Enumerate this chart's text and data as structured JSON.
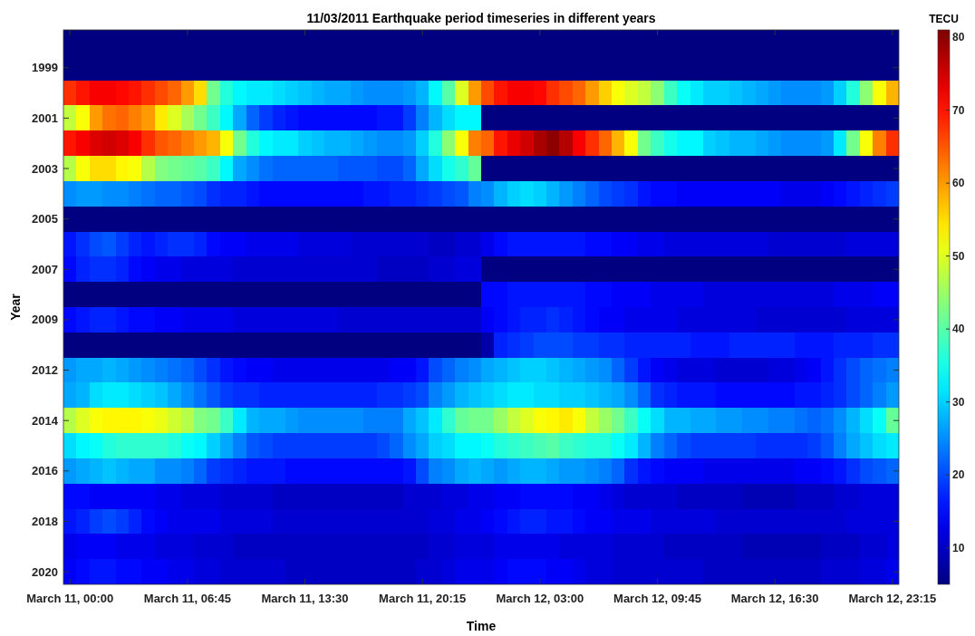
{
  "chart_data": {
    "type": "heatmap",
    "title": "11/03/2011 Earthquake period timeseries in different years",
    "xlabel": "Time",
    "ylabel": "Year",
    "clabel": "TECU",
    "categories": [
      "March 11, 00:00",
      null,
      null,
      null,
      null,
      null,
      null,
      null,
      null,
      "March 11, 06:45",
      null,
      null,
      null,
      null,
      null,
      null,
      null,
      null,
      "March 11, 13:30",
      null,
      null,
      null,
      null,
      null,
      null,
      null,
      null,
      "March 11, 20:15",
      null,
      null,
      null,
      null,
      null,
      null,
      null,
      null,
      "March 12, 03:00",
      null,
      null,
      null,
      null,
      null,
      null,
      null,
      null,
      "March 12, 09:45",
      null,
      null,
      null,
      null,
      null,
      null,
      null,
      null,
      "March 12, 16:30",
      null,
      null,
      null,
      null,
      null,
      null,
      null,
      null,
      "March 12, 23:15"
    ],
    "y_categories": [
      null,
      "1999",
      null,
      "2001",
      null,
      "2003",
      null,
      "2005",
      null,
      "2007",
      null,
      "2009",
      null,
      "2012",
      null,
      "2014",
      null,
      "2016",
      null,
      "2018",
      null,
      "2020"
    ],
    "clim": [
      5,
      81
    ],
    "cticks": [
      10,
      20,
      30,
      40,
      50,
      60,
      70,
      80
    ],
    "cells": [
      [
        5,
        5,
        5,
        5,
        5,
        5,
        5,
        5,
        5,
        5,
        5,
        5,
        5,
        5,
        5,
        5,
        5,
        5,
        5,
        5,
        5,
        5,
        5,
        5,
        5,
        5,
        5,
        5,
        5,
        5,
        5,
        5,
        5,
        5,
        5,
        5,
        5,
        5,
        5,
        5,
        5,
        5,
        5,
        5,
        5,
        5,
        5,
        5,
        5,
        5,
        5,
        5,
        5,
        5,
        5,
        5,
        5,
        5,
        5,
        5,
        5,
        5,
        5,
        5
      ],
      [
        5,
        5,
        5,
        5,
        5,
        5,
        5,
        5,
        5,
        5,
        5,
        5,
        5,
        5,
        5,
        5,
        5,
        5,
        5,
        5,
        5,
        5,
        5,
        5,
        5,
        5,
        5,
        5,
        5,
        5,
        5,
        5,
        5,
        5,
        5,
        5,
        5,
        5,
        5,
        5,
        5,
        5,
        5,
        5,
        5,
        5,
        5,
        5,
        5,
        5,
        5,
        5,
        5,
        5,
        5,
        5,
        5,
        5,
        5,
        5,
        5,
        5,
        5,
        5
      ],
      [
        68,
        70,
        72,
        72,
        71,
        70,
        68,
        66,
        64,
        60,
        55,
        42,
        36,
        33,
        32,
        32,
        31,
        30,
        29,
        28,
        27,
        27,
        26,
        25,
        25,
        25,
        26,
        28,
        33,
        40,
        50,
        60,
        66,
        70,
        72,
        72,
        71,
        68,
        66,
        64,
        60,
        56,
        52,
        50,
        48,
        44,
        38,
        34,
        32,
        30,
        30,
        29,
        28,
        27,
        26,
        25,
        25,
        25,
        26,
        30,
        36,
        44,
        52,
        58
      ],
      [
        48,
        52,
        60,
        63,
        64,
        62,
        60,
        54,
        50,
        46,
        42,
        38,
        33,
        27,
        22,
        19,
        17,
        16,
        15,
        15,
        15,
        15,
        15,
        15,
        16,
        16,
        19,
        24,
        28,
        31,
        33,
        33,
        5,
        5,
        5,
        5,
        5,
        5,
        5,
        5,
        5,
        5,
        5,
        5,
        5,
        5,
        5,
        5,
        5,
        5,
        5,
        5,
        5,
        5,
        5,
        5,
        5,
        5,
        5,
        5,
        5,
        5,
        5,
        5
      ],
      [
        70,
        72,
        74,
        75,
        74,
        72,
        68,
        65,
        64,
        62,
        60,
        58,
        52,
        42,
        36,
        33,
        32,
        32,
        30,
        29,
        28,
        28,
        27,
        26,
        25,
        25,
        26,
        30,
        36,
        44,
        52,
        62,
        64,
        70,
        73,
        75,
        78,
        80,
        77,
        72,
        68,
        64,
        58,
        52,
        42,
        38,
        35,
        33,
        33,
        30,
        29,
        28,
        28,
        27,
        26,
        25,
        25,
        25,
        26,
        32,
        42,
        52,
        62,
        68
      ],
      [
        47,
        52,
        55,
        55,
        53,
        52,
        47,
        43,
        42,
        41,
        40,
        38,
        33,
        27,
        25,
        23,
        22,
        22,
        22,
        22,
        22,
        21,
        21,
        21,
        20,
        20,
        22,
        27,
        31,
        35,
        37,
        41,
        5,
        5,
        5,
        5,
        5,
        5,
        5,
        5,
        5,
        5,
        5,
        5,
        5,
        5,
        5,
        5,
        5,
        5,
        5,
        5,
        5,
        5,
        5,
        5,
        5,
        5,
        5,
        5,
        5,
        5,
        5,
        5
      ],
      [
        25,
        26,
        26,
        25,
        25,
        24,
        23,
        22,
        22,
        21,
        20,
        18,
        17,
        17,
        16,
        15,
        15,
        15,
        15,
        15,
        15,
        15,
        15,
        16,
        16,
        17,
        17,
        18,
        19,
        20,
        21,
        24,
        25,
        28,
        30,
        31,
        30,
        28,
        26,
        24,
        22,
        20,
        19,
        18,
        16,
        15,
        15,
        14,
        14,
        14,
        14,
        14,
        14,
        14,
        14,
        13,
        13,
        13,
        14,
        15,
        16,
        17,
        18,
        19
      ],
      [
        5,
        5,
        5,
        5,
        5,
        5,
        5,
        5,
        5,
        5,
        5,
        5,
        5,
        5,
        5,
        5,
        5,
        5,
        5,
        5,
        5,
        5,
        5,
        5,
        5,
        5,
        5,
        5,
        5,
        5,
        5,
        5,
        5,
        5,
        5,
        5,
        5,
        5,
        5,
        5,
        5,
        5,
        5,
        5,
        5,
        5,
        5,
        5,
        5,
        5,
        5,
        5,
        5,
        5,
        5,
        5,
        5,
        5,
        5,
        5,
        5,
        5,
        5,
        5
      ],
      [
        16,
        18,
        20,
        21,
        19,
        17,
        16,
        17,
        18,
        18,
        17,
        15,
        14,
        14,
        13,
        13,
        13,
        13,
        12,
        12,
        12,
        12,
        11,
        11,
        11,
        11,
        11,
        11,
        10,
        10,
        11,
        11,
        13,
        15,
        16,
        16,
        16,
        16,
        16,
        16,
        15,
        15,
        14,
        14,
        13,
        13,
        12,
        12,
        12,
        12,
        12,
        12,
        12,
        12,
        11,
        11,
        11,
        11,
        11,
        11,
        12,
        12,
        12,
        12
      ],
      [
        15,
        17,
        18,
        18,
        17,
        15,
        14,
        13,
        13,
        12,
        12,
        12,
        12,
        11,
        11,
        11,
        11,
        11,
        11,
        11,
        11,
        11,
        11,
        11,
        10,
        10,
        10,
        10,
        11,
        11,
        12,
        12,
        5,
        5,
        5,
        5,
        5,
        5,
        5,
        5,
        5,
        5,
        5,
        5,
        5,
        5,
        5,
        5,
        5,
        5,
        5,
        5,
        5,
        5,
        5,
        5,
        5,
        5,
        5,
        5,
        5,
        5,
        5,
        5
      ],
      [
        5,
        5,
        5,
        5,
        5,
        5,
        5,
        5,
        5,
        5,
        5,
        5,
        5,
        5,
        5,
        5,
        5,
        5,
        5,
        5,
        5,
        5,
        5,
        5,
        5,
        5,
        5,
        5,
        5,
        5,
        5,
        5,
        15,
        15,
        16,
        16,
        16,
        16,
        16,
        16,
        15,
        15,
        14,
        14,
        14,
        13,
        13,
        13,
        13,
        12,
        12,
        12,
        12,
        12,
        12,
        12,
        12,
        12,
        12,
        13,
        13,
        13,
        14,
        14
      ],
      [
        15,
        16,
        17,
        17,
        16,
        15,
        15,
        14,
        14,
        13,
        13,
        13,
        13,
        12,
        12,
        12,
        12,
        12,
        12,
        12,
        12,
        11,
        11,
        11,
        11,
        11,
        11,
        11,
        11,
        11,
        11,
        11,
        14,
        15,
        16,
        17,
        17,
        18,
        17,
        16,
        15,
        14,
        14,
        13,
        13,
        13,
        13,
        12,
        12,
        12,
        12,
        12,
        12,
        11,
        11,
        11,
        11,
        11,
        11,
        11,
        12,
        12,
        12,
        12
      ],
      [
        5,
        5,
        5,
        5,
        5,
        5,
        5,
        5,
        5,
        5,
        5,
        5,
        5,
        5,
        5,
        5,
        5,
        5,
        5,
        5,
        5,
        5,
        5,
        5,
        5,
        5,
        5,
        5,
        5,
        5,
        5,
        5,
        8,
        17,
        18,
        19,
        20,
        20,
        20,
        19,
        19,
        18,
        18,
        17,
        17,
        17,
        17,
        17,
        16,
        16,
        16,
        17,
        17,
        17,
        17,
        17,
        16,
        16,
        16,
        17,
        17,
        17,
        18,
        18
      ],
      [
        26,
        27,
        27,
        28,
        27,
        26,
        25,
        24,
        23,
        22,
        20,
        18,
        16,
        15,
        14,
        14,
        13,
        13,
        13,
        13,
        13,
        13,
        13,
        13,
        13,
        14,
        14,
        16,
        20,
        22,
        24,
        25,
        27,
        28,
        29,
        30,
        30,
        29,
        28,
        27,
        26,
        25,
        22,
        19,
        16,
        14,
        13,
        12,
        12,
        12,
        11,
        11,
        11,
        11,
        12,
        12,
        13,
        14,
        16,
        18,
        20,
        22,
        23,
        24
      ],
      [
        27,
        28,
        31,
        32,
        32,
        31,
        30,
        29,
        27,
        25,
        23,
        21,
        19,
        18,
        18,
        17,
        17,
        17,
        17,
        17,
        17,
        17,
        17,
        17,
        18,
        18,
        19,
        20,
        24,
        26,
        28,
        29,
        30,
        31,
        32,
        32,
        31,
        31,
        30,
        30,
        29,
        28,
        27,
        25,
        22,
        18,
        17,
        16,
        16,
        16,
        15,
        15,
        15,
        15,
        15,
        15,
        16,
        16,
        17,
        18,
        20,
        22,
        24,
        26
      ],
      [
        47,
        50,
        52,
        53,
        53,
        53,
        52,
        51,
        49,
        47,
        43,
        42,
        38,
        32,
        28,
        27,
        27,
        26,
        25,
        25,
        25,
        25,
        25,
        24,
        24,
        24,
        27,
        29,
        32,
        37,
        41,
        42,
        42,
        45,
        48,
        50,
        52,
        53,
        54,
        52,
        48,
        45,
        42,
        38,
        34,
        31,
        28,
        28,
        27,
        27,
        26,
        26,
        25,
        25,
        24,
        24,
        23,
        22,
        23,
        25,
        28,
        31,
        34,
        41
      ],
      [
        31,
        33,
        34,
        36,
        37,
        37,
        37,
        37,
        36,
        34,
        33,
        30,
        27,
        24,
        21,
        20,
        19,
        19,
        19,
        19,
        19,
        19,
        19,
        19,
        20,
        22,
        25,
        27,
        30,
        31,
        33,
        33,
        34,
        36,
        37,
        38,
        39,
        40,
        38,
        37,
        36,
        36,
        34,
        32,
        28,
        24,
        22,
        20,
        19,
        19,
        19,
        19,
        19,
        18,
        18,
        18,
        18,
        19,
        21,
        24,
        27,
        29,
        31,
        32
      ],
      [
        26,
        27,
        28,
        29,
        28,
        27,
        27,
        25,
        25,
        24,
        22,
        19,
        18,
        17,
        16,
        16,
        16,
        15,
        15,
        15,
        15,
        15,
        15,
        15,
        15,
        15,
        16,
        20,
        24,
        25,
        27,
        28,
        27,
        26,
        27,
        28,
        28,
        27,
        26,
        26,
        25,
        24,
        22,
        18,
        16,
        15,
        14,
        14,
        14,
        13,
        13,
        13,
        13,
        13,
        13,
        13,
        14,
        14,
        15,
        16,
        18,
        20,
        21,
        22
      ],
      [
        15,
        15,
        14,
        14,
        14,
        14,
        14,
        13,
        13,
        12,
        12,
        12,
        11,
        11,
        11,
        11,
        10,
        10,
        10,
        10,
        10,
        10,
        10,
        10,
        10,
        10,
        11,
        11,
        11,
        12,
        12,
        13,
        13,
        14,
        14,
        15,
        15,
        15,
        15,
        14,
        14,
        13,
        12,
        11,
        11,
        11,
        11,
        10,
        10,
        10,
        10,
        10,
        9,
        9,
        9,
        9,
        10,
        10,
        10,
        11,
        11,
        12,
        12,
        12
      ],
      [
        16,
        17,
        19,
        20,
        19,
        17,
        15,
        14,
        13,
        13,
        13,
        13,
        12,
        12,
        12,
        12,
        11,
        11,
        11,
        11,
        11,
        11,
        11,
        11,
        11,
        11,
        11,
        11,
        12,
        12,
        13,
        13,
        14,
        15,
        16,
        17,
        17,
        16,
        16,
        15,
        14,
        14,
        13,
        13,
        13,
        12,
        12,
        12,
        12,
        12,
        11,
        11,
        11,
        11,
        11,
        11,
        11,
        11,
        11,
        11,
        12,
        12,
        12,
        12
      ],
      [
        13,
        14,
        14,
        14,
        13,
        13,
        13,
        12,
        12,
        12,
        11,
        11,
        11,
        10,
        10,
        10,
        10,
        10,
        10,
        10,
        10,
        10,
        10,
        10,
        10,
        10,
        10,
        10,
        11,
        11,
        12,
        12,
        12,
        13,
        13,
        13,
        13,
        13,
        12,
        12,
        12,
        12,
        11,
        11,
        11,
        11,
        10,
        10,
        10,
        10,
        10,
        10,
        9,
        9,
        9,
        9,
        9,
        9,
        10,
        10,
        10,
        11,
        11,
        12
      ],
      [
        14,
        15,
        16,
        16,
        15,
        15,
        14,
        14,
        13,
        13,
        12,
        12,
        11,
        11,
        11,
        11,
        11,
        10,
        10,
        10,
        10,
        10,
        10,
        10,
        10,
        10,
        10,
        11,
        11,
        12,
        13,
        13,
        13,
        14,
        15,
        15,
        15,
        14,
        14,
        13,
        12,
        12,
        11,
        11,
        11,
        11,
        11,
        11,
        11,
        10,
        10,
        10,
        10,
        10,
        10,
        10,
        10,
        10,
        11,
        11,
        11,
        12,
        12,
        13
      ]
    ]
  }
}
